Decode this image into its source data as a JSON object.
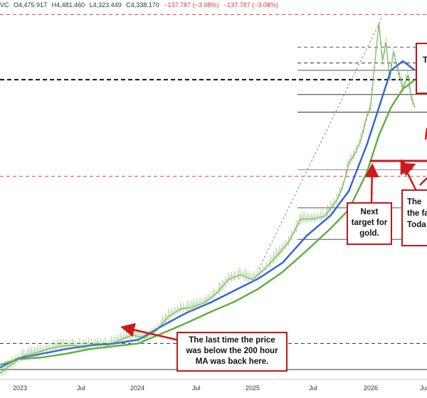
{
  "header": {
    "symbol_tail": "VC",
    "open": "O4,475.917",
    "high": "H4,481.460",
    "low": "L4,323.449",
    "close": "C4,338.170",
    "change": "−137.787 (−3.08%)",
    "change2": "−137.787 (−3.08%)"
  },
  "annotations": {
    "last_time": "The last time the price was below the 200 hour MA was back here.",
    "next_target": "Next target for gold.",
    "partial_right": "The the fa Toda",
    "partial_top": "T"
  },
  "colors": {
    "price": "#7ab55c",
    "ma100": "#2f63d9",
    "ma200": "#5aae3f",
    "arrow": "#d0181b",
    "dashed_red": "#e04a4a"
  },
  "chart_data": {
    "type": "line",
    "x_ticks": [
      "2023",
      "Jul",
      "2024",
      "Jul",
      "2025",
      "Jul",
      "2026",
      "Jul"
    ],
    "series": [
      {
        "x": [
          2022.85,
          2022.95,
          2023.05,
          2023.15,
          2023.25,
          2023.35,
          2023.45,
          2023.55,
          2023.65,
          2023.75,
          2023.85,
          2023.95,
          2024.05,
          2024.15,
          2024.25,
          2024.35,
          2024.45,
          2024.55,
          2024.65,
          2024.75,
          2024.85,
          2024.95,
          2025.05,
          2025.15,
          2025.25,
          2025.35,
          2025.45,
          2025.55,
          2025.65,
          2025.7,
          2025.75,
          2025.8,
          2025.85,
          2025.9,
          2025.93,
          2025.96,
          2026.0,
          2026.03,
          2026.06,
          2026.09,
          2026.12,
          2026.16,
          2026.2,
          2026.24,
          2026.27,
          2026.3
        ],
        "y": [
          1640,
          1740,
          1830,
          1860,
          1900,
          1930,
          1940,
          1920,
          1960,
          1940,
          2000,
          2050,
          2020,
          2100,
          2250,
          2330,
          2350,
          2400,
          2500,
          2650,
          2700,
          2650,
          2760,
          2900,
          3050,
          3300,
          3300,
          3330,
          3500,
          3650,
          3900,
          4000,
          4150,
          4400,
          4500,
          4900,
          5400,
          5000,
          5200,
          4800,
          5100,
          4900,
          4700,
          4850,
          4600,
          4500
        ]
      },
      {
        "x": [
          2022.85,
          2023.0,
          2023.2,
          2023.4,
          2023.6,
          2023.8,
          2024.0,
          2024.2,
          2024.4,
          2024.6,
          2024.8,
          2025.0,
          2025.2,
          2025.4,
          2025.6,
          2025.75,
          2025.9,
          2026.0,
          2026.1,
          2026.2,
          2026.3
        ],
        "y": [
          1700,
          1800,
          1850,
          1900,
          1940,
          1960,
          2000,
          2150,
          2290,
          2400,
          2530,
          2660,
          2830,
          3120,
          3340,
          3600,
          4100,
          4500,
          4900,
          5000,
          4900
        ]
      },
      {
        "x": [
          2022.85,
          2023.0,
          2023.2,
          2023.4,
          2023.6,
          2023.8,
          2024.0,
          2024.2,
          2024.4,
          2024.6,
          2024.8,
          2025.0,
          2025.2,
          2025.4,
          2025.6,
          2025.75,
          2025.9,
          2026.0,
          2026.1,
          2026.2,
          2026.3
        ],
        "y": [
          1730,
          1790,
          1810,
          1850,
          1900,
          1930,
          1960,
          2070,
          2180,
          2300,
          2410,
          2550,
          2730,
          2960,
          3200,
          3400,
          3800,
          4200,
          4500,
          4700,
          4800
        ]
      }
    ],
    "xlim": [
      2022.85,
      2026.4
    ],
    "ylim": [
      1580,
      5550
    ],
    "levels": [
      {
        "y": 5500,
        "style": "dashed",
        "color": "#e04a4a"
      },
      {
        "y": 5150,
        "style": "dashed",
        "color": "#555"
      },
      {
        "y": 4980,
        "style": "dashed",
        "color": "#333"
      },
      {
        "y": 4900,
        "style": "solid",
        "color": "#555"
      },
      {
        "y": 4800,
        "style": "dashed",
        "color": "#111"
      },
      {
        "y": 4640,
        "style": "solid",
        "color": "#333"
      },
      {
        "y": 4450,
        "style": "solid",
        "color": "#333"
      },
      {
        "y": 3830,
        "style": "solid",
        "color": "#888"
      },
      {
        "y": 3760,
        "style": "dashed",
        "color": "#e04a4a"
      },
      {
        "y": 3420,
        "style": "solid",
        "color": "#555"
      },
      {
        "y": 3080,
        "style": "solid",
        "color": "#555"
      },
      {
        "y": 1960,
        "style": "dashed",
        "color": "#333"
      },
      {
        "y": 1680,
        "style": "solid",
        "color": "#333"
      }
    ]
  }
}
